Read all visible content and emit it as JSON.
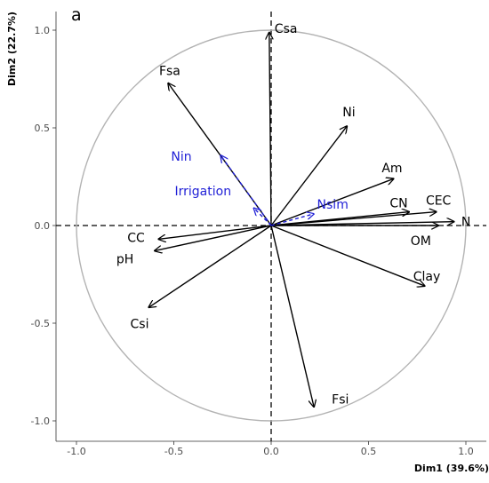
{
  "chart_data": {
    "type": "scatter",
    "panel_label": "a",
    "xlabel": "Dim1 (39.6%)",
    "ylabel": "Dim2 (22.7%)",
    "xlim": [
      -1.1,
      1.1
    ],
    "ylim": [
      -1.1,
      1.1
    ],
    "x_ticks": [
      -1.0,
      -0.5,
      0.0,
      0.5,
      1.0
    ],
    "x_tick_labels": [
      "-1.0",
      "-0.5",
      "0.0",
      "0.5",
      "1.0"
    ],
    "y_ticks": [
      -1.0,
      -0.5,
      0.0,
      0.5,
      1.0
    ],
    "y_tick_labels": [
      "-1.0",
      "-0.5",
      "0.0",
      "0.5",
      "1.0"
    ],
    "grid": false,
    "correlation_circle": true,
    "series": [
      {
        "color": "#000000",
        "line_style": "solid",
        "vectors": [
          {
            "label": "Csa",
            "x": -0.01,
            "y": 0.99
          },
          {
            "label": "Fsa",
            "x": -0.53,
            "y": 0.73
          },
          {
            "label": "Ni",
            "x": 0.39,
            "y": 0.51
          },
          {
            "label": "Am",
            "x": 0.63,
            "y": 0.24
          },
          {
            "label": "CN",
            "x": 0.71,
            "y": 0.07
          },
          {
            "label": "CEC",
            "x": 0.85,
            "y": 0.07
          },
          {
            "label": "N",
            "x": 0.94,
            "y": 0.02
          },
          {
            "label": "OM",
            "x": 0.86,
            "y": 0.0
          },
          {
            "label": "Clay",
            "x": 0.79,
            "y": -0.31
          },
          {
            "label": "Fsi",
            "x": 0.22,
            "y": -0.93
          },
          {
            "label": "Csi",
            "x": -0.63,
            "y": -0.42
          },
          {
            "label": "CC",
            "x": -0.58,
            "y": -0.07
          },
          {
            "label": "pH",
            "x": -0.6,
            "y": -0.13
          }
        ]
      },
      {
        "color": "#1f1fd6",
        "line_style": "dashed",
        "vectors": [
          {
            "label": "Nin",
            "x": -0.26,
            "y": 0.36
          },
          {
            "label": "Irrigation",
            "x": -0.09,
            "y": 0.09
          },
          {
            "label": "Nsim",
            "x": 0.22,
            "y": 0.06
          }
        ]
      }
    ]
  }
}
